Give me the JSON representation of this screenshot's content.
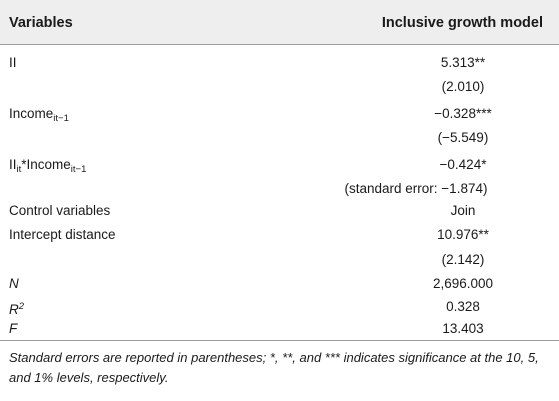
{
  "header": {
    "variables_label": "Variables",
    "model_label": "Inclusive growth model"
  },
  "rows": [
    {
      "var_text": "II",
      "value": "5.313**"
    },
    {
      "var_text": "",
      "value": "(2.010)"
    },
    {
      "var_main": "Income",
      "var_sub": "it−1",
      "value": "−0.328***"
    },
    {
      "var_text": "",
      "value": "(−5.549)"
    },
    {
      "var_main": "II",
      "var_sub": "it",
      "var_mid": "*Income",
      "var_sub2": "it−1",
      "value": "−0.424*"
    },
    {
      "var_text": "",
      "value": "(standard error: −1.874)"
    },
    {
      "var_text": "Control variables",
      "value": "Join"
    },
    {
      "var_text": "Intercept distance",
      "value": "10.976**"
    },
    {
      "var_text": "",
      "value": "(2.142)"
    },
    {
      "var_text": "N",
      "value": "2,696.000"
    },
    {
      "var_main": "R",
      "var_sup": "2",
      "value": "0.328"
    },
    {
      "var_text": "F",
      "value": "13.403"
    }
  ],
  "footnote": "Standard errors are reported in parentheses; *, **, and *** indicates significance at the 10, 5, and 1% levels, respectively."
}
